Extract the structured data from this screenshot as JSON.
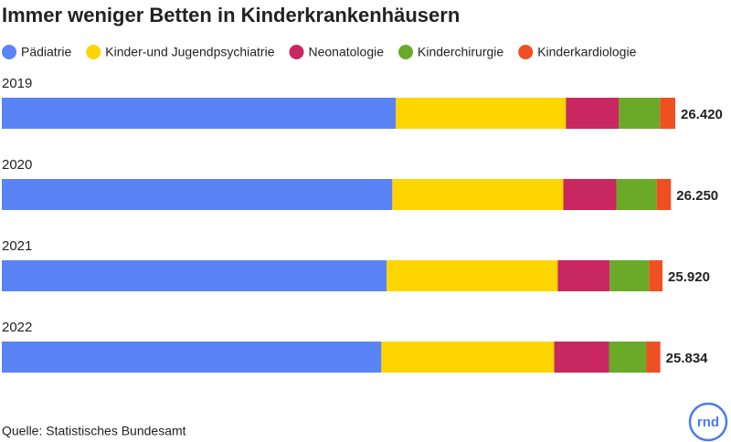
{
  "chart_data": {
    "type": "stacked-bar-horizontal",
    "title": "Immer weniger Betten in Kinderkrankenhäusern",
    "categories": [
      "2019",
      "2020",
      "2021",
      "2022"
    ],
    "series": [
      {
        "name": "Pädiatrie",
        "color": "#5a83f5",
        "values": [
          15460,
          15320,
          15100,
          14890
        ]
      },
      {
        "name": "Kinder-und Jugendpsychiatrie",
        "color": "#ffd500",
        "values": [
          6670,
          6710,
          6710,
          6780
        ]
      },
      {
        "name": "Neonatologie",
        "color": "#c8285f",
        "values": [
          2080,
          2080,
          2040,
          2150
        ]
      },
      {
        "name": "Kinderchirurgie",
        "color": "#6aaa28",
        "values": [
          1610,
          1580,
          1540,
          1470
        ]
      },
      {
        "name": "Kinderkardiologie",
        "color": "#ee5021",
        "values": [
          600,
          560,
          530,
          544
        ]
      }
    ],
    "totals": {
      "values": [
        26420,
        26250,
        25920,
        25834
      ],
      "value_labels": [
        "26.420",
        "26.250",
        "25.920",
        "25.834"
      ]
    },
    "source": "Quelle: Statistisches Bundesamt",
    "logo": "rnd"
  }
}
